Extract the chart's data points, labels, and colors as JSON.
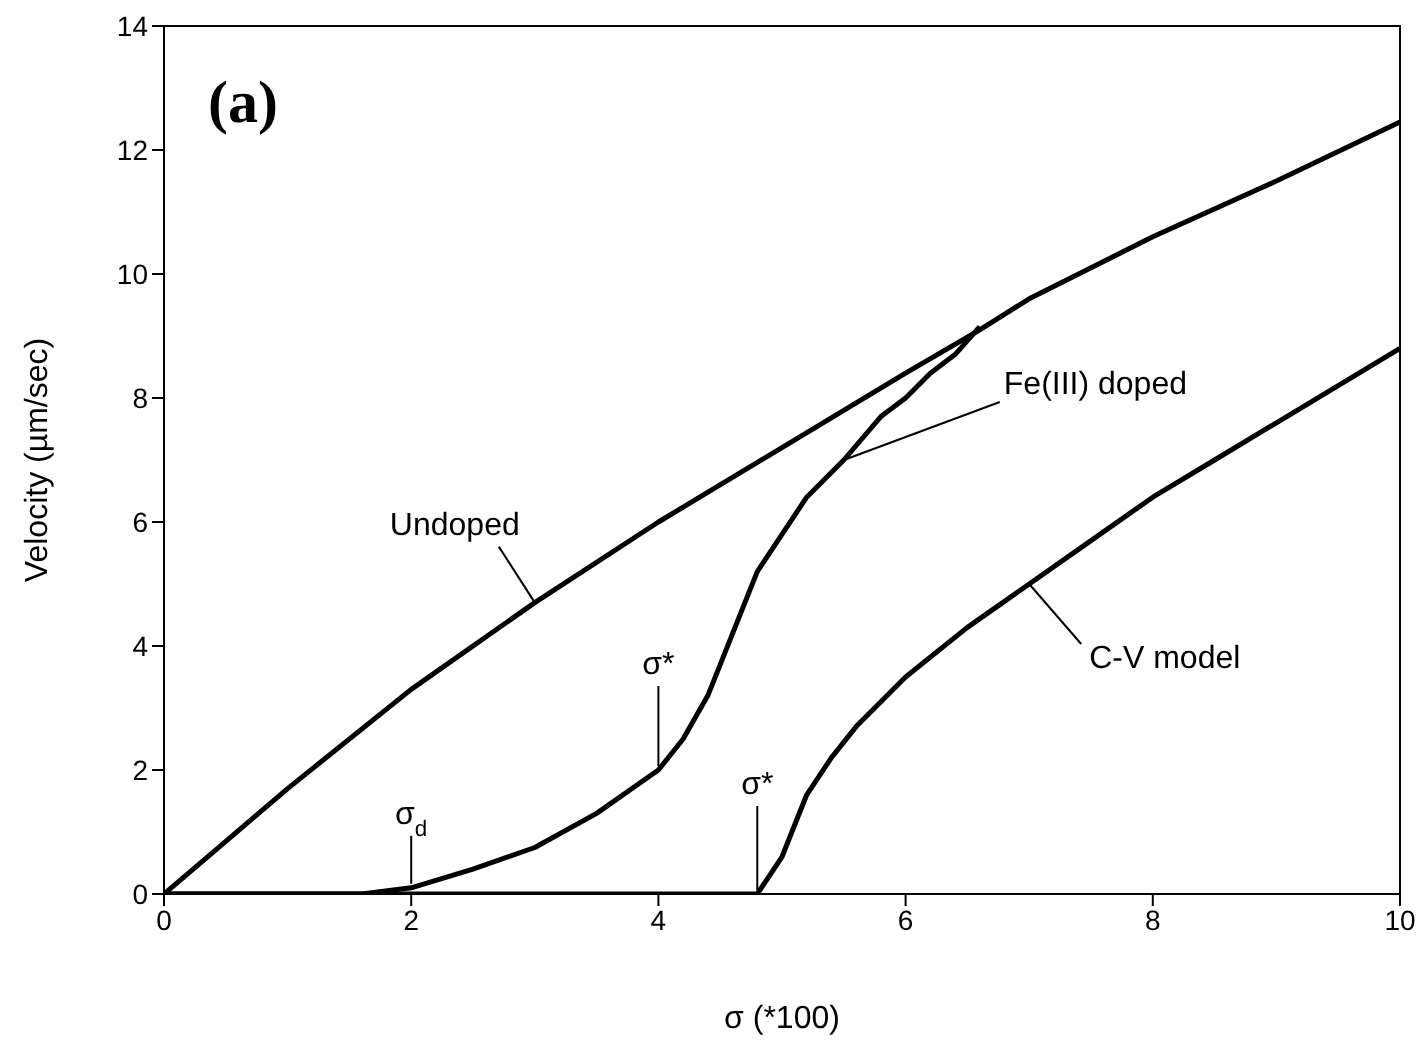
{
  "chart_data": {
    "type": "line",
    "title": "(a)",
    "xlabel": "σ (*100)",
    "ylabel": "Velocity (µm/sec)",
    "xlim": [
      0,
      10
    ],
    "xticks": [
      0,
      2,
      4,
      6,
      8,
      10
    ],
    "ylim": [
      0,
      14
    ],
    "yticks": [
      0,
      2,
      4,
      6,
      8,
      10,
      12,
      14
    ],
    "marker": "none",
    "line_style": "solid",
    "series": [
      {
        "name": "Undoped",
        "color": "#000000",
        "x": [
          0,
          0.5,
          1,
          2,
          3,
          4,
          5,
          6,
          6.6,
          7,
          8,
          9,
          10
        ],
        "values": [
          0,
          0.85,
          1.7,
          3.3,
          4.7,
          6.0,
          7.2,
          8.4,
          9.1,
          9.6,
          10.6,
          11.5,
          12.45
        ]
      },
      {
        "name": "Fe(III) doped",
        "color": "#000000",
        "x": [
          0,
          1.6,
          2,
          2.5,
          3,
          3.5,
          4,
          4.2,
          4.4,
          4.6,
          4.8,
          5,
          5.2,
          5.5,
          5.8,
          6,
          6.2,
          6.4,
          6.6
        ],
        "values": [
          0,
          0,
          0.1,
          0.4,
          0.75,
          1.3,
          2.0,
          2.5,
          3.2,
          4.2,
          5.2,
          5.8,
          6.4,
          7.0,
          7.7,
          8.0,
          8.4,
          8.7,
          9.15
        ]
      },
      {
        "name": "C-V model",
        "color": "#000000",
        "x": [
          0,
          4.8,
          5,
          5.2,
          5.4,
          5.6,
          6,
          6.5,
          7,
          7.5,
          8,
          8.5,
          9,
          9.5,
          10
        ],
        "values": [
          0,
          0,
          0.6,
          1.6,
          2.2,
          2.7,
          3.5,
          4.3,
          5.0,
          5.7,
          6.4,
          7.0,
          7.6,
          8.2,
          8.8
        ]
      }
    ],
    "annotations": [
      {
        "text": "σ$_{d}$",
        "x": 2,
        "y": 0.1
      },
      {
        "text": "σ*",
        "x": 4,
        "y": 2
      },
      {
        "text": "σ*",
        "x": 4.8,
        "y": 0
      }
    ]
  }
}
